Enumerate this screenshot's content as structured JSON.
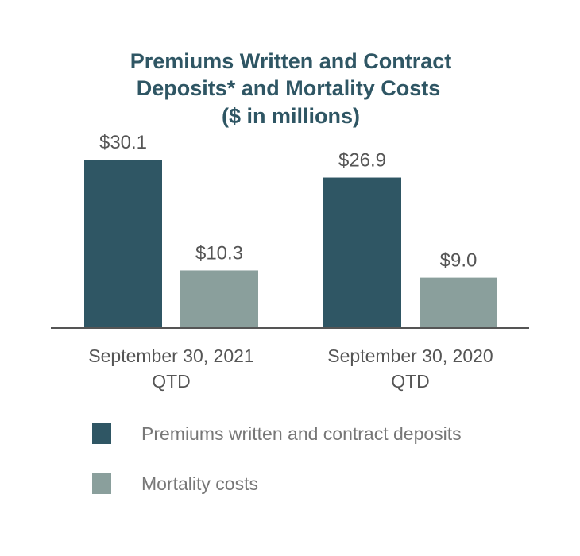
{
  "chart_data": {
    "type": "bar",
    "title_lines": [
      "Premiums Written and Contract",
      "Deposits* and Mortality Costs",
      "($ in millions)"
    ],
    "categories": [
      {
        "line1": "September 30, 2021",
        "line2": "QTD"
      },
      {
        "line1": "September 30, 2020",
        "line2": "QTD"
      }
    ],
    "series": [
      {
        "name": "Premiums written and contract deposits",
        "color": "#2f5664",
        "values": [
          30.1,
          26.9
        ],
        "labels": [
          "$30.1",
          "$26.9"
        ]
      },
      {
        "name": "Mortality costs",
        "color": "#8a9f9c",
        "values": [
          10.3,
          9.0
        ],
        "labels": [
          "$10.3",
          "$9.0"
        ]
      }
    ],
    "ylim": [
      0,
      30.1
    ],
    "legend_position": "bottom-left",
    "axis_color": "#555555"
  }
}
